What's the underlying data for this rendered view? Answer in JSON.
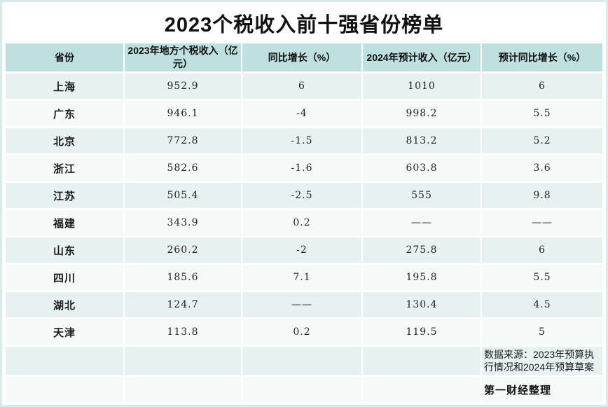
{
  "page": {
    "title": "2023个税收入前十强省份榜单"
  },
  "colors": {
    "page_border": "#d8ebea",
    "header_bg": "#bee0df",
    "row_odd_bg": "#e6f1f0",
    "row_even_bg": "#f5faf9",
    "title_text": "#111111",
    "body_text": "#1a1a1a"
  },
  "table": {
    "headers": [
      "省份",
      "2023年地方个税收入（亿元）",
      "同比增长（%）",
      "2024年预计收入（亿元）",
      "预计同比增长（%）"
    ],
    "rows": [
      [
        "上海",
        "952.9",
        "6",
        "1010",
        "6"
      ],
      [
        "广东",
        "946.1",
        "-4",
        "998.2",
        "5.5"
      ],
      [
        "北京",
        "772.8",
        "-1.5",
        "813.2",
        "5.2"
      ],
      [
        "浙江",
        "582.6",
        "-1.6",
        "603.8",
        "3.6"
      ],
      [
        "江苏",
        "505.4",
        "-2.5",
        "555",
        "9.8"
      ],
      [
        "福建",
        "343.9",
        "0.2",
        "——",
        "——"
      ],
      [
        "山东",
        "260.2",
        "-2",
        "275.8",
        "6"
      ],
      [
        "四川",
        "185.6",
        "7.1",
        "195.8",
        "5.5"
      ],
      [
        "湖北",
        "124.7",
        "——",
        "130.4",
        "4.5"
      ],
      [
        "天津",
        "113.8",
        "0.2",
        "119.5",
        "5"
      ]
    ],
    "footer": {
      "source_note": "数据来源：2023年预算执行情况和2024年预算草案",
      "credit": "第一财经整理"
    }
  },
  "chart_data": {
    "type": "table",
    "title": "2023个税收入前十强省份榜单",
    "columns": [
      "省份",
      "2023年地方个税收入（亿元）",
      "同比增长（%）",
      "2024年预计收入（亿元）",
      "预计同比增长（%）"
    ],
    "rows": [
      [
        "上海",
        952.9,
        6,
        1010,
        6
      ],
      [
        "广东",
        946.1,
        -4,
        998.2,
        5.5
      ],
      [
        "北京",
        772.8,
        -1.5,
        813.2,
        5.2
      ],
      [
        "浙江",
        582.6,
        -1.6,
        603.8,
        3.6
      ],
      [
        "江苏",
        505.4,
        -2.5,
        555,
        9.8
      ],
      [
        "福建",
        343.9,
        0.2,
        null,
        null
      ],
      [
        "山东",
        260.2,
        -2,
        275.8,
        6
      ],
      [
        "四川",
        185.6,
        7.1,
        195.8,
        5.5
      ],
      [
        "湖北",
        124.7,
        null,
        130.4,
        4.5
      ],
      [
        "天津",
        113.8,
        0.2,
        119.5,
        5
      ]
    ],
    "missing_value_display": "——",
    "source": "数据来源：2023年预算执行情况和2024年预算草案",
    "credit": "第一财经整理"
  }
}
